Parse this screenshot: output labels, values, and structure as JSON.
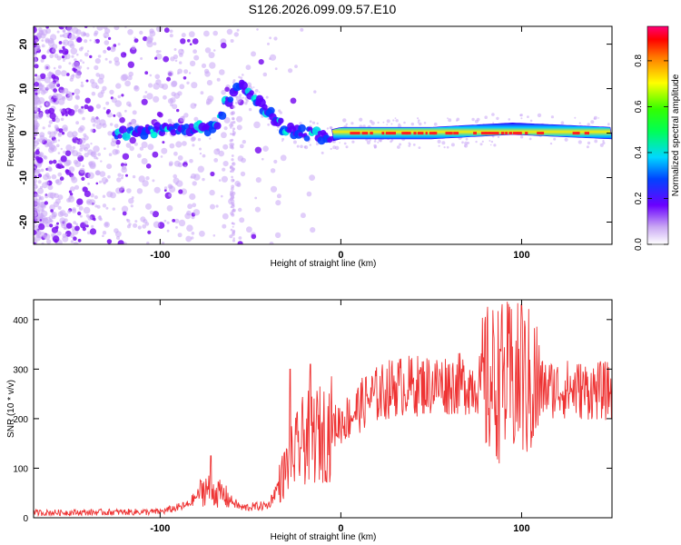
{
  "figure_title": "S126.2026.099.09.57.E10",
  "chart_data": [
    {
      "type": "heatmap",
      "title": "S126.2026.099.09.57.E10",
      "xlabel": "Height of straight line (km)",
      "ylabel": "Frequency (Hz)",
      "xlim": [
        -170,
        150
      ],
      "ylim": [
        -25,
        24
      ],
      "xticks": [
        -100,
        0,
        100
      ],
      "yticks": [
        -20,
        -10,
        0,
        10,
        20
      ],
      "colorbar": {
        "label": "Normalized spectral amplitude",
        "range": [
          0,
          0.95
        ],
        "ticks": [
          0.0,
          0.2,
          0.4,
          0.6,
          0.8
        ]
      },
      "ridge": [
        {
          "x": -120,
          "y": 0
        },
        {
          "x": -100,
          "y": 1
        },
        {
          "x": -80,
          "y": 1
        },
        {
          "x": -70,
          "y": 1
        },
        {
          "x": -62,
          "y": 8
        },
        {
          "x": -55,
          "y": 11
        },
        {
          "x": -48,
          "y": 8
        },
        {
          "x": -40,
          "y": 5
        },
        {
          "x": -32,
          "y": 1
        },
        {
          "x": -20,
          "y": 0
        },
        {
          "x": -10,
          "y": -1
        },
        {
          "x": 0,
          "y": 0
        },
        {
          "x": 20,
          "y": 0
        },
        {
          "x": 50,
          "y": 0
        },
        {
          "x": 95,
          "y": 1
        },
        {
          "x": 150,
          "y": 0
        }
      ]
    },
    {
      "type": "line",
      "xlabel": "Height of straight line (km)",
      "ylabel": "SNR (10 * v/v)",
      "xlim": [
        -170,
        150
      ],
      "ylim": [
        0,
        440
      ],
      "xticks": [
        -100,
        0,
        100
      ],
      "yticks": [
        0,
        100,
        200,
        300,
        400
      ],
      "color": "#ee3333",
      "envelope": [
        {
          "x": -170,
          "y": 10
        },
        {
          "x": -100,
          "y": 12
        },
        {
          "x": -85,
          "y": 25
        },
        {
          "x": -75,
          "y": 60
        },
        {
          "x": -65,
          "y": 45
        },
        {
          "x": -55,
          "y": 20
        },
        {
          "x": -40,
          "y": 25
        },
        {
          "x": -30,
          "y": 100
        },
        {
          "x": -20,
          "y": 160
        },
        {
          "x": -10,
          "y": 170
        },
        {
          "x": 5,
          "y": 205
        },
        {
          "x": 15,
          "y": 240
        },
        {
          "x": 30,
          "y": 265
        },
        {
          "x": 60,
          "y": 270
        },
        {
          "x": 80,
          "y": 270
        },
        {
          "x": 90,
          "y": 275
        },
        {
          "x": 100,
          "y": 272
        },
        {
          "x": 110,
          "y": 262
        },
        {
          "x": 150,
          "y": 255
        }
      ],
      "peaks": [
        {
          "x": -72,
          "y": 125
        },
        {
          "x": -28,
          "y": 300
        },
        {
          "x": -17,
          "y": 310
        },
        {
          "x": 88,
          "y": 340
        },
        {
          "x": 100,
          "y": 430
        }
      ]
    }
  ]
}
